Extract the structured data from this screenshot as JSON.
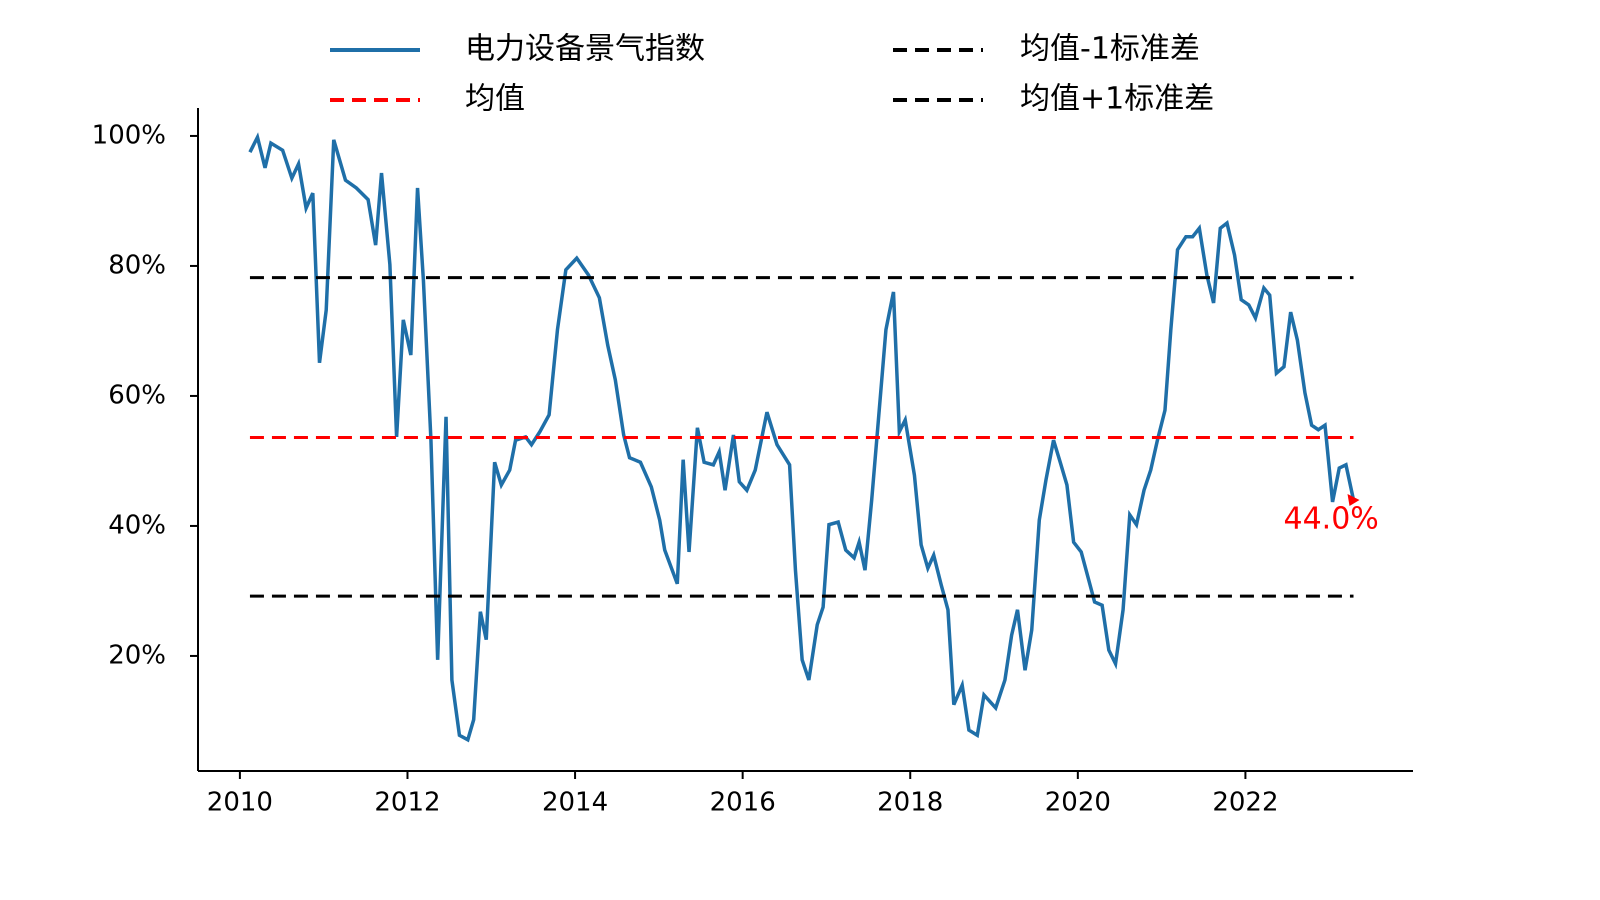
{
  "chart_data": {
    "type": "line",
    "x": [
      2010.12,
      2010.21,
      2010.3,
      2010.37,
      2010.51,
      2010.62,
      2010.7,
      2010.79,
      2010.87,
      2010.95,
      2011.03,
      2011.12,
      2011.26,
      2011.39,
      2011.53,
      2011.62,
      2011.69,
      2011.79,
      2011.87,
      2011.95,
      2012.04,
      2012.12,
      2012.19,
      2012.28,
      2012.36,
      2012.46,
      2012.53,
      2012.62,
      2012.72,
      2012.79,
      2012.87,
      2012.94,
      2013.04,
      2013.12,
      2013.22,
      2013.29,
      2013.41,
      2013.48,
      2013.58,
      2013.69,
      2013.79,
      2013.89,
      2014.02,
      2014.16,
      2014.29,
      2014.39,
      2014.48,
      2014.58,
      2014.65,
      2014.78,
      2014.91,
      2015.01,
      2015.07,
      2015.22,
      2015.29,
      2015.36,
      2015.46,
      2015.54,
      2015.65,
      2015.72,
      2015.79,
      2015.89,
      2015.96,
      2016.05,
      2016.15,
      2016.29,
      2016.41,
      2016.56,
      2016.63,
      2016.71,
      2016.79,
      2016.89,
      2016.96,
      2017.03,
      2017.14,
      2017.23,
      2017.33,
      2017.39,
      2017.46,
      2017.54,
      2017.62,
      2017.71,
      2017.8,
      2017.87,
      2017.94,
      2018.05,
      2018.13,
      2018.21,
      2018.28,
      2018.37,
      2018.45,
      2018.52,
      2018.62,
      2018.7,
      2018.8,
      2018.88,
      2019.02,
      2019.13,
      2019.21,
      2019.28,
      2019.37,
      2019.45,
      2019.54,
      2019.62,
      2019.71,
      2019.79,
      2019.87,
      2019.95,
      2020.04,
      2020.13,
      2020.2,
      2020.29,
      2020.37,
      2020.45,
      2020.54,
      2020.62,
      2020.7,
      2020.79,
      2020.87,
      2020.95,
      2021.04,
      2021.11,
      2021.19,
      2021.29,
      2021.37,
      2021.45,
      2021.54,
      2021.62,
      2021.7,
      2021.78,
      2021.87,
      2021.95,
      2022.04,
      2022.12,
      2022.22,
      2022.29,
      2022.37,
      2022.46,
      2022.54,
      2022.62,
      2022.71,
      2022.79,
      2022.87,
      2022.95,
      2023.04,
      2023.12,
      2023.2,
      2023.29
    ],
    "series": [
      {
        "name": "电力设备景气指数",
        "color": "#1f6fa8",
        "style": "solid",
        "values": [
          97.5,
          99.8,
          95.1,
          98.9,
          97.8,
          93.5,
          95.7,
          88.9,
          91.2,
          65.1,
          73.2,
          99.4,
          93.2,
          92.0,
          90.2,
          83.2,
          94.3,
          80.2,
          53.7,
          71.7,
          66.3,
          92.0,
          77.8,
          53.2,
          19.4,
          56.8,
          16.3,
          7.8,
          7.1,
          10.2,
          26.8,
          22.5,
          49.8,
          46.3,
          48.6,
          53.2,
          53.7,
          52.5,
          54.5,
          57.1,
          70.2,
          79.4,
          81.2,
          78.6,
          75.1,
          67.8,
          62.5,
          54.0,
          50.5,
          49.8,
          46.0,
          40.9,
          36.3,
          31.1,
          50.2,
          36.0,
          55.1,
          49.8,
          49.4,
          51.4,
          45.5,
          54.0,
          46.8,
          45.5,
          48.6,
          57.5,
          52.5,
          49.4,
          33.2,
          19.4,
          16.3,
          24.8,
          27.5,
          40.2,
          40.6,
          36.3,
          35.1,
          37.5,
          33.2,
          44.0,
          56.3,
          70.2,
          76.0,
          54.5,
          56.3,
          47.8,
          37.1,
          33.5,
          35.5,
          30.9,
          27.1,
          12.5,
          15.5,
          8.6,
          7.8,
          14.0,
          12.0,
          16.3,
          23.2,
          27.1,
          17.8,
          24.0,
          40.9,
          47.1,
          53.2,
          49.8,
          46.3,
          37.5,
          36.0,
          31.7,
          28.3,
          27.8,
          20.9,
          18.8,
          27.1,
          41.7,
          40.2,
          45.5,
          48.6,
          53.2,
          57.8,
          70.2,
          82.5,
          84.5,
          84.5,
          85.8,
          78.6,
          74.3,
          85.8,
          86.6,
          81.7,
          74.8,
          74.0,
          72.0,
          76.6,
          75.5,
          63.5,
          64.5,
          72.9,
          68.6,
          60.5,
          55.5,
          54.8,
          55.5,
          43.7,
          48.9,
          49.4,
          44.0
        ]
      },
      {
        "name": "均值",
        "color": "#ff0000",
        "style": "dashed",
        "x": [
          2010.12,
          2023.29
        ],
        "values": [
          53.6,
          53.6
        ]
      },
      {
        "name": "均值-1标准差",
        "color": "#000000",
        "style": "dashed",
        "x": [
          2010.12,
          2023.29
        ],
        "values": [
          29.2,
          29.2
        ]
      },
      {
        "name": "均值+1标准差",
        "color": "#000000",
        "style": "dashed",
        "x": [
          2010.12,
          2023.29
        ],
        "values": [
          78.2,
          78.2
        ]
      }
    ],
    "annotation": {
      "text": "44.0%",
      "color": "#ff0000"
    },
    "xlim": [
      2009.5,
      2024.0
    ],
    "xticks": [
      2010,
      2012,
      2014,
      2016,
      2018,
      2020,
      2022
    ],
    "ylim": [
      2.3,
      104.3
    ],
    "yticks": [
      {
        "value": 20,
        "label": "20%"
      },
      {
        "value": 40,
        "label": "40%"
      },
      {
        "value": 60,
        "label": "60%"
      },
      {
        "value": 80,
        "label": "80%"
      },
      {
        "value": 100,
        "label": "100%"
      }
    ],
    "legend": "top"
  }
}
